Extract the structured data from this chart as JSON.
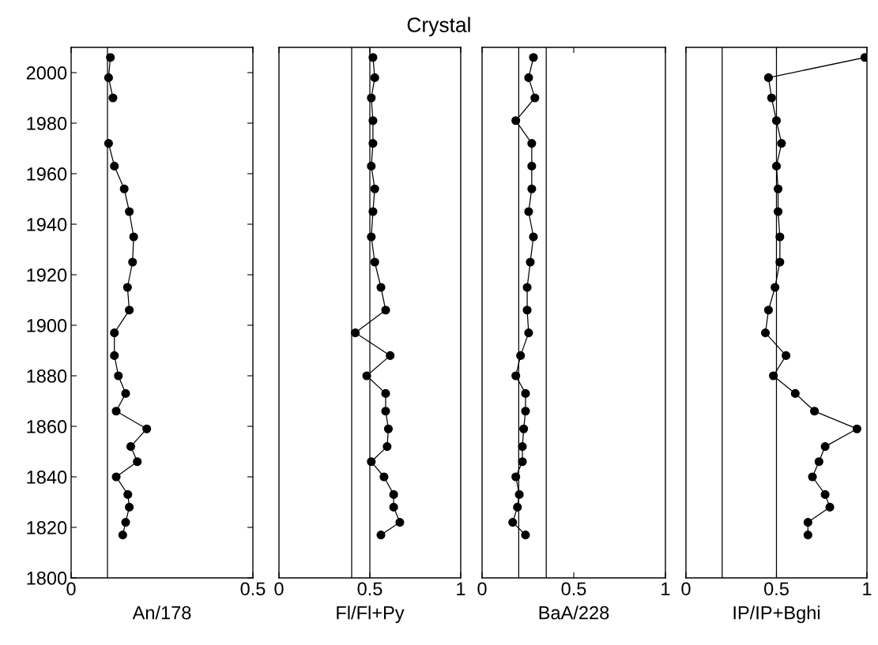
{
  "chart_data": [
    {
      "type": "line",
      "orientation": "horizontal",
      "xlabel": "An/178",
      "marker": "circle",
      "line_style": "solid",
      "grid": false,
      "legend": false,
      "x": [
        2006,
        1998,
        1990,
        1981,
        1972,
        1963,
        1954,
        1945,
        1935,
        1925,
        1915,
        1906,
        1897,
        1888,
        1880,
        1873,
        1866,
        1859,
        1852,
        1846,
        1840,
        1833,
        1828,
        1822,
        1817
      ],
      "series": [
        {
          "color": "#000000",
          "values": [
            0.108,
            0.103,
            0.115,
            null,
            0.103,
            0.119,
            0.146,
            0.16,
            0.172,
            0.169,
            0.155,
            0.16,
            0.119,
            0.119,
            0.13,
            0.15,
            0.124,
            0.208,
            0.164,
            0.182,
            0.124,
            0.156,
            0.16,
            0.15,
            0.142
          ]
        }
      ],
      "xlim": [
        0,
        0.5
      ],
      "xticks": [
        0,
        0.5
      ],
      "ylim": [
        1800,
        2010
      ],
      "yticks": [
        1800,
        1820,
        1840,
        1860,
        1880,
        1900,
        1920,
        1940,
        1960,
        1980,
        2000
      ],
      "ref_lines": [
        {
          "axis": "x",
          "value": 0.1,
          "color": "#000000"
        }
      ]
    },
    {
      "type": "line",
      "orientation": "horizontal",
      "title": "Crystal",
      "xlabel": "Fl/Fl+Py",
      "marker": "circle",
      "line_style": "solid",
      "grid": false,
      "legend": false,
      "tick_labels": "x",
      "x": [
        2006,
        1998,
        1990,
        1981,
        1972,
        1963,
        1954,
        1945,
        1935,
        1925,
        1915,
        1906,
        1897,
        1888,
        1880,
        1873,
        1866,
        1859,
        1852,
        1846,
        1840,
        1833,
        1828,
        1822,
        1817
      ],
      "series": [
        {
          "color": "#000000",
          "values": [
            0.517,
            0.527,
            0.508,
            0.517,
            0.517,
            0.508,
            0.527,
            0.517,
            0.508,
            0.527,
            0.561,
            0.587,
            0.42,
            0.612,
            0.483,
            0.587,
            0.587,
            0.602,
            0.595,
            0.508,
            0.578,
            0.631,
            0.631,
            0.665,
            0.561
          ]
        }
      ],
      "xlim": [
        0,
        1
      ],
      "xticks": [
        0,
        0.5,
        1
      ],
      "ylim": [
        1800,
        2010
      ],
      "ref_lines": [
        {
          "axis": "x",
          "value": 0.4,
          "color": "#000000"
        },
        {
          "axis": "x",
          "value": 0.5,
          "color": "#000000"
        }
      ]
    },
    {
      "type": "line",
      "orientation": "horizontal",
      "xlabel": "BaA/228",
      "marker": "circle",
      "line_style": "solid",
      "grid": false,
      "legend": false,
      "tick_labels": "x",
      "x": [
        2006,
        1998,
        1990,
        1981,
        1972,
        1963,
        1954,
        1945,
        1935,
        1925,
        1915,
        1906,
        1897,
        1888,
        1880,
        1873,
        1866,
        1859,
        1852,
        1846,
        1840,
        1833,
        1828,
        1822,
        1817
      ],
      "series": [
        {
          "color": "#000000",
          "values": [
            0.28,
            0.254,
            0.288,
            0.184,
            0.271,
            0.271,
            0.271,
            0.254,
            0.28,
            0.263,
            0.246,
            0.246,
            0.254,
            0.21,
            0.184,
            0.237,
            0.237,
            0.227,
            0.22,
            0.22,
            0.184,
            0.203,
            0.193,
            0.167,
            0.237
          ]
        }
      ],
      "xlim": [
        0,
        1
      ],
      "xticks": [
        0,
        0.5,
        1
      ],
      "ylim": [
        1800,
        2010
      ],
      "ref_lines": [
        {
          "axis": "x",
          "value": 0.2,
          "color": "#000000"
        },
        {
          "axis": "x",
          "value": 0.35,
          "color": "#000000"
        }
      ]
    },
    {
      "type": "line",
      "orientation": "horizontal",
      "xlabel": "IP/IP+Bghi",
      "marker": "circle",
      "line_style": "solid",
      "grid": false,
      "legend": false,
      "tick_labels": "x",
      "x": [
        2006,
        1998,
        1990,
        1981,
        1972,
        1963,
        1954,
        1945,
        1935,
        1925,
        1915,
        1906,
        1897,
        1888,
        1880,
        1873,
        1866,
        1859,
        1852,
        1846,
        1840,
        1833,
        1828,
        1822,
        1817
      ],
      "series": [
        {
          "color": "#000000",
          "values": [
            0.989,
            0.456,
            0.473,
            0.5,
            0.528,
            0.5,
            0.509,
            0.509,
            0.519,
            0.519,
            0.492,
            0.456,
            0.439,
            0.553,
            0.483,
            0.604,
            0.71,
            0.945,
            0.769,
            0.735,
            0.699,
            0.769,
            0.795,
            0.674,
            0.674
          ]
        }
      ],
      "xlim": [
        0,
        1
      ],
      "xticks": [
        0,
        0.5,
        1
      ],
      "ylim": [
        1800,
        2010
      ],
      "ref_lines": [
        {
          "axis": "x",
          "value": 0.2,
          "color": "#000000"
        },
        {
          "axis": "x",
          "value": 0.5,
          "color": "#000000"
        }
      ]
    }
  ]
}
